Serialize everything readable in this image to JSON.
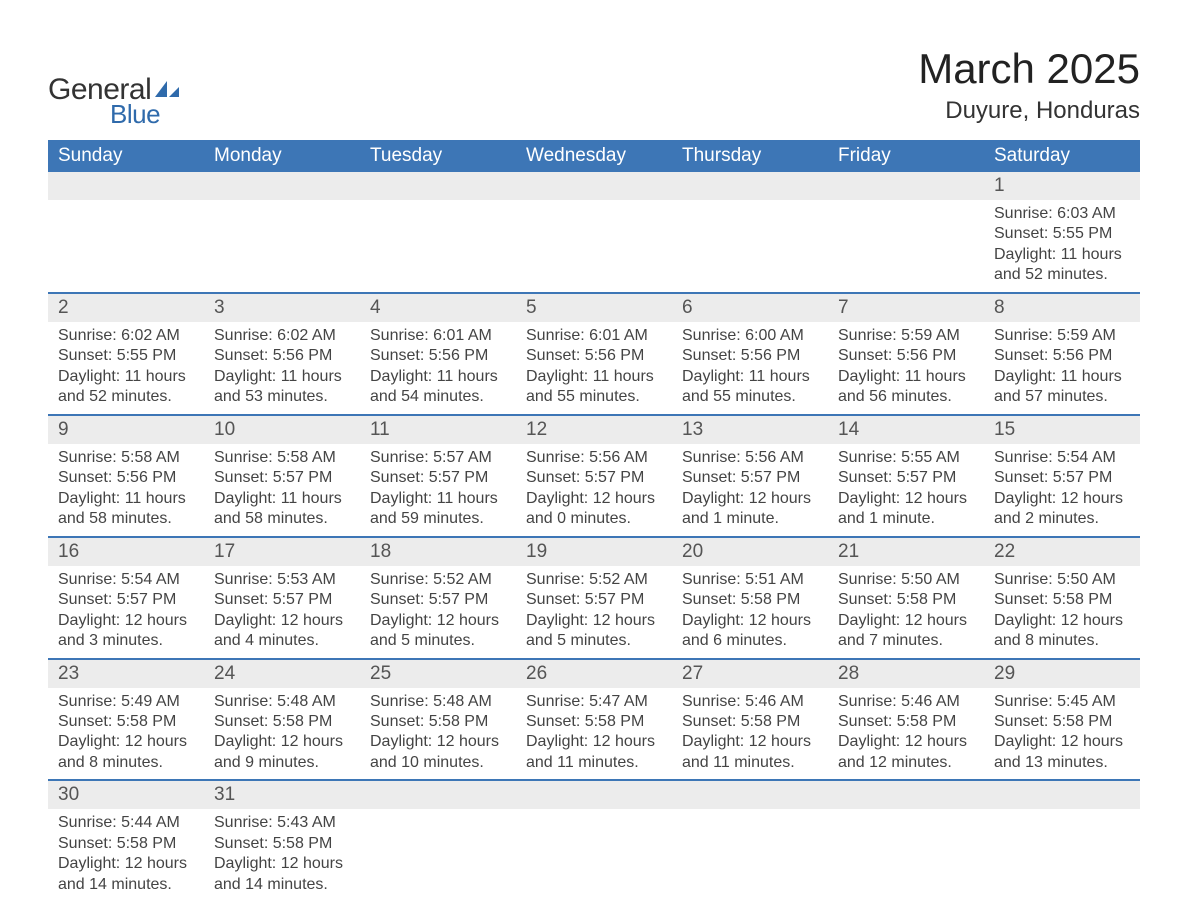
{
  "logo": {
    "text_general": "General",
    "text_blue": "Blue",
    "icon_color": "#2f6aab"
  },
  "title": "March 2025",
  "location": "Duyure, Honduras",
  "colors": {
    "header_bg": "#3d76b6",
    "header_text": "#ffffff",
    "daynum_bg": "#ececec",
    "body_text": "#444444",
    "title_text": "#222222",
    "week_border": "#3d76b6",
    "page_bg": "#ffffff"
  },
  "fonts": {
    "title_size_pt": 32,
    "location_size_pt": 18,
    "header_size_pt": 14,
    "daynum_size_pt": 14,
    "detail_size_pt": 12
  },
  "day_headers": [
    "Sunday",
    "Monday",
    "Tuesday",
    "Wednesday",
    "Thursday",
    "Friday",
    "Saturday"
  ],
  "weeks": [
    [
      null,
      null,
      null,
      null,
      null,
      null,
      {
        "n": "1",
        "sunrise": "Sunrise: 6:03 AM",
        "sunset": "Sunset: 5:55 PM",
        "day1": "Daylight: 11 hours",
        "day2": "and 52 minutes."
      }
    ],
    [
      {
        "n": "2",
        "sunrise": "Sunrise: 6:02 AM",
        "sunset": "Sunset: 5:55 PM",
        "day1": "Daylight: 11 hours",
        "day2": "and 52 minutes."
      },
      {
        "n": "3",
        "sunrise": "Sunrise: 6:02 AM",
        "sunset": "Sunset: 5:56 PM",
        "day1": "Daylight: 11 hours",
        "day2": "and 53 minutes."
      },
      {
        "n": "4",
        "sunrise": "Sunrise: 6:01 AM",
        "sunset": "Sunset: 5:56 PM",
        "day1": "Daylight: 11 hours",
        "day2": "and 54 minutes."
      },
      {
        "n": "5",
        "sunrise": "Sunrise: 6:01 AM",
        "sunset": "Sunset: 5:56 PM",
        "day1": "Daylight: 11 hours",
        "day2": "and 55 minutes."
      },
      {
        "n": "6",
        "sunrise": "Sunrise: 6:00 AM",
        "sunset": "Sunset: 5:56 PM",
        "day1": "Daylight: 11 hours",
        "day2": "and 55 minutes."
      },
      {
        "n": "7",
        "sunrise": "Sunrise: 5:59 AM",
        "sunset": "Sunset: 5:56 PM",
        "day1": "Daylight: 11 hours",
        "day2": "and 56 minutes."
      },
      {
        "n": "8",
        "sunrise": "Sunrise: 5:59 AM",
        "sunset": "Sunset: 5:56 PM",
        "day1": "Daylight: 11 hours",
        "day2": "and 57 minutes."
      }
    ],
    [
      {
        "n": "9",
        "sunrise": "Sunrise: 5:58 AM",
        "sunset": "Sunset: 5:56 PM",
        "day1": "Daylight: 11 hours",
        "day2": "and 58 minutes."
      },
      {
        "n": "10",
        "sunrise": "Sunrise: 5:58 AM",
        "sunset": "Sunset: 5:57 PM",
        "day1": "Daylight: 11 hours",
        "day2": "and 58 minutes."
      },
      {
        "n": "11",
        "sunrise": "Sunrise: 5:57 AM",
        "sunset": "Sunset: 5:57 PM",
        "day1": "Daylight: 11 hours",
        "day2": "and 59 minutes."
      },
      {
        "n": "12",
        "sunrise": "Sunrise: 5:56 AM",
        "sunset": "Sunset: 5:57 PM",
        "day1": "Daylight: 12 hours",
        "day2": "and 0 minutes."
      },
      {
        "n": "13",
        "sunrise": "Sunrise: 5:56 AM",
        "sunset": "Sunset: 5:57 PM",
        "day1": "Daylight: 12 hours",
        "day2": "and 1 minute."
      },
      {
        "n": "14",
        "sunrise": "Sunrise: 5:55 AM",
        "sunset": "Sunset: 5:57 PM",
        "day1": "Daylight: 12 hours",
        "day2": "and 1 minute."
      },
      {
        "n": "15",
        "sunrise": "Sunrise: 5:54 AM",
        "sunset": "Sunset: 5:57 PM",
        "day1": "Daylight: 12 hours",
        "day2": "and 2 minutes."
      }
    ],
    [
      {
        "n": "16",
        "sunrise": "Sunrise: 5:54 AM",
        "sunset": "Sunset: 5:57 PM",
        "day1": "Daylight: 12 hours",
        "day2": "and 3 minutes."
      },
      {
        "n": "17",
        "sunrise": "Sunrise: 5:53 AM",
        "sunset": "Sunset: 5:57 PM",
        "day1": "Daylight: 12 hours",
        "day2": "and 4 minutes."
      },
      {
        "n": "18",
        "sunrise": "Sunrise: 5:52 AM",
        "sunset": "Sunset: 5:57 PM",
        "day1": "Daylight: 12 hours",
        "day2": "and 5 minutes."
      },
      {
        "n": "19",
        "sunrise": "Sunrise: 5:52 AM",
        "sunset": "Sunset: 5:57 PM",
        "day1": "Daylight: 12 hours",
        "day2": "and 5 minutes."
      },
      {
        "n": "20",
        "sunrise": "Sunrise: 5:51 AM",
        "sunset": "Sunset: 5:58 PM",
        "day1": "Daylight: 12 hours",
        "day2": "and 6 minutes."
      },
      {
        "n": "21",
        "sunrise": "Sunrise: 5:50 AM",
        "sunset": "Sunset: 5:58 PM",
        "day1": "Daylight: 12 hours",
        "day2": "and 7 minutes."
      },
      {
        "n": "22",
        "sunrise": "Sunrise: 5:50 AM",
        "sunset": "Sunset: 5:58 PM",
        "day1": "Daylight: 12 hours",
        "day2": "and 8 minutes."
      }
    ],
    [
      {
        "n": "23",
        "sunrise": "Sunrise: 5:49 AM",
        "sunset": "Sunset: 5:58 PM",
        "day1": "Daylight: 12 hours",
        "day2": "and 8 minutes."
      },
      {
        "n": "24",
        "sunrise": "Sunrise: 5:48 AM",
        "sunset": "Sunset: 5:58 PM",
        "day1": "Daylight: 12 hours",
        "day2": "and 9 minutes."
      },
      {
        "n": "25",
        "sunrise": "Sunrise: 5:48 AM",
        "sunset": "Sunset: 5:58 PM",
        "day1": "Daylight: 12 hours",
        "day2": "and 10 minutes."
      },
      {
        "n": "26",
        "sunrise": "Sunrise: 5:47 AM",
        "sunset": "Sunset: 5:58 PM",
        "day1": "Daylight: 12 hours",
        "day2": "and 11 minutes."
      },
      {
        "n": "27",
        "sunrise": "Sunrise: 5:46 AM",
        "sunset": "Sunset: 5:58 PM",
        "day1": "Daylight: 12 hours",
        "day2": "and 11 minutes."
      },
      {
        "n": "28",
        "sunrise": "Sunrise: 5:46 AM",
        "sunset": "Sunset: 5:58 PM",
        "day1": "Daylight: 12 hours",
        "day2": "and 12 minutes."
      },
      {
        "n": "29",
        "sunrise": "Sunrise: 5:45 AM",
        "sunset": "Sunset: 5:58 PM",
        "day1": "Daylight: 12 hours",
        "day2": "and 13 minutes."
      }
    ],
    [
      {
        "n": "30",
        "sunrise": "Sunrise: 5:44 AM",
        "sunset": "Sunset: 5:58 PM",
        "day1": "Daylight: 12 hours",
        "day2": "and 14 minutes."
      },
      {
        "n": "31",
        "sunrise": "Sunrise: 5:43 AM",
        "sunset": "Sunset: 5:58 PM",
        "day1": "Daylight: 12 hours",
        "day2": "and 14 minutes."
      },
      null,
      null,
      null,
      null,
      null
    ]
  ]
}
